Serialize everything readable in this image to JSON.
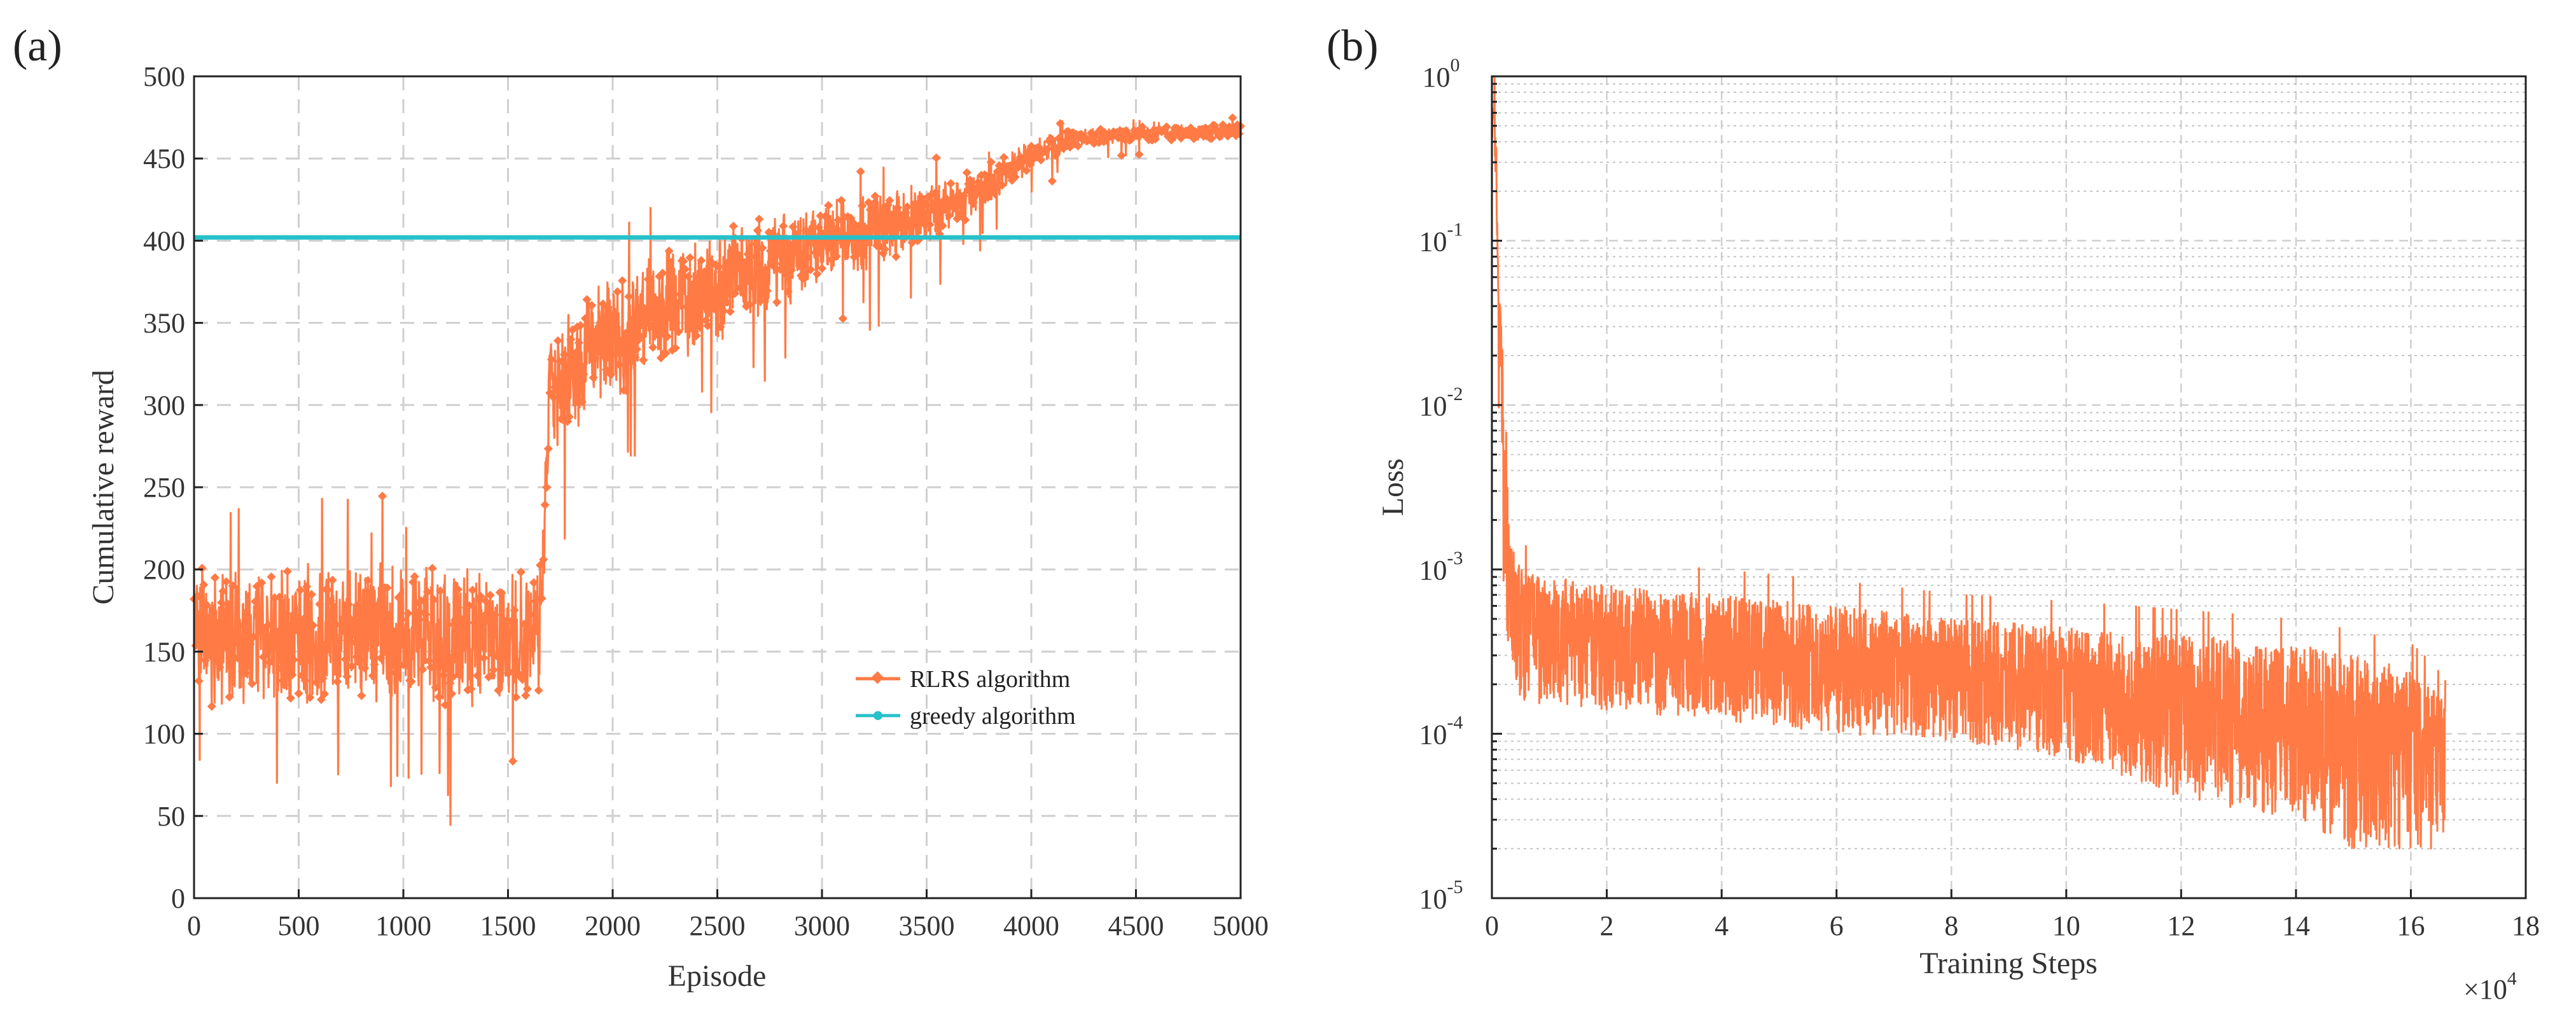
{
  "chart_data": [
    {
      "panel": "(a)",
      "type": "line",
      "title": "",
      "xlabel": "Episode",
      "ylabel": "Cumulative reward",
      "xlim": [
        0,
        5000
      ],
      "ylim": [
        0,
        500
      ],
      "xticks": [
        0,
        500,
        1000,
        1500,
        2000,
        2500,
        3000,
        3500,
        4000,
        4500,
        5000
      ],
      "xtick_labels": [
        "0",
        "500",
        "1000",
        "1500",
        "2000",
        "2500",
        "3000",
        "3500",
        "4000",
        "4500",
        "5000"
      ],
      "yticks": [
        0,
        50,
        100,
        150,
        200,
        250,
        300,
        350,
        400,
        450,
        500
      ],
      "ytick_labels": [
        "0",
        "50",
        "100",
        "150",
        "200",
        "250",
        "300",
        "350",
        "400",
        "450",
        "500"
      ],
      "grid": true,
      "legend_position": "center-right",
      "series": [
        {
          "name": "RLRS algorithm",
          "color": "#ff7a45",
          "style": "noisy line with diamond markers",
          "x": [
            0,
            200,
            400,
            600,
            800,
            1000,
            1200,
            1400,
            1650,
            1700,
            1800,
            2000,
            2200,
            2400,
            2600,
            2800,
            3000,
            3200,
            3400,
            3600,
            3800,
            4000,
            4200,
            4400,
            4600,
            4800,
            5000
          ],
          "values": [
            160,
            158,
            160,
            158,
            162,
            160,
            158,
            162,
            158,
            310,
            320,
            340,
            355,
            368,
            378,
            390,
            398,
            405,
            412,
            420,
            435,
            452,
            462,
            464,
            465,
            466,
            466
          ],
          "noise_amplitude": [
            45,
            45,
            45,
            45,
            45,
            45,
            45,
            45,
            45,
            40,
            40,
            40,
            38,
            36,
            34,
            32,
            30,
            26,
            22,
            18,
            14,
            10,
            6,
            5,
            5,
            5,
            5
          ],
          "min": 38,
          "max": 480
        },
        {
          "name": "greedy algorithm",
          "color": "#26c1c9",
          "style": "constant line",
          "x": [
            0,
            5000
          ],
          "values": [
            402,
            402
          ]
        }
      ]
    },
    {
      "panel": "(b)",
      "type": "line",
      "title": "",
      "xlabel": "Training Steps",
      "ylabel": "Loss",
      "x_scale_label": "×10^4",
      "x_multiplier_text": "×10",
      "x_multiplier_exp": "4",
      "xlim": [
        0,
        18
      ],
      "yscale": "log",
      "ylim": [
        1e-05,
        1
      ],
      "xticks": [
        0,
        2,
        4,
        6,
        8,
        10,
        12,
        14,
        16,
        18
      ],
      "xtick_labels": [
        "0",
        "2",
        "4",
        "6",
        "8",
        "10",
        "12",
        "14",
        "16",
        "18"
      ],
      "ytick_labels": [
        {
          "base": "10",
          "exp": "-5"
        },
        {
          "base": "10",
          "exp": "-4"
        },
        {
          "base": "10",
          "exp": "-3"
        },
        {
          "base": "10",
          "exp": "-2"
        },
        {
          "base": "10",
          "exp": "-1"
        },
        {
          "base": "10",
          "exp": "0"
        }
      ],
      "grid": true,
      "series": [
        {
          "name": "Loss",
          "color": "#ff7a45",
          "x": [
            0,
            0.05,
            0.1,
            0.2,
            0.3,
            0.5,
            1,
            2,
            4,
            6,
            8,
            10,
            12,
            14,
            15,
            16,
            16.6
          ],
          "values": [
            0.5,
            0.6,
            0.05,
            0.004,
            0.001,
            0.0006,
            0.00045,
            0.0004,
            0.00035,
            0.0003,
            0.00025,
            0.0002,
            0.00016,
            0.00013,
            0.00011,
            0.0001,
            9e-05
          ],
          "lower_band": [
            0.3,
            0.3,
            0.01,
            0.0006,
            0.0002,
            0.00015,
            0.00015,
            0.00014,
            0.00012,
            0.0001,
            9e-05,
            7e-05,
            4e-05,
            3e-05,
            2e-05,
            2e-05,
            2e-05
          ],
          "upper_band": [
            0.6,
            0.7,
            0.09,
            0.008,
            0.0015,
            0.001,
            0.0009,
            0.0008,
            0.0007,
            0.0006,
            0.0005,
            0.00045,
            0.0004,
            0.00035,
            0.0003,
            0.00025,
            0.00015
          ],
          "max_x": 16.6
        }
      ]
    }
  ]
}
